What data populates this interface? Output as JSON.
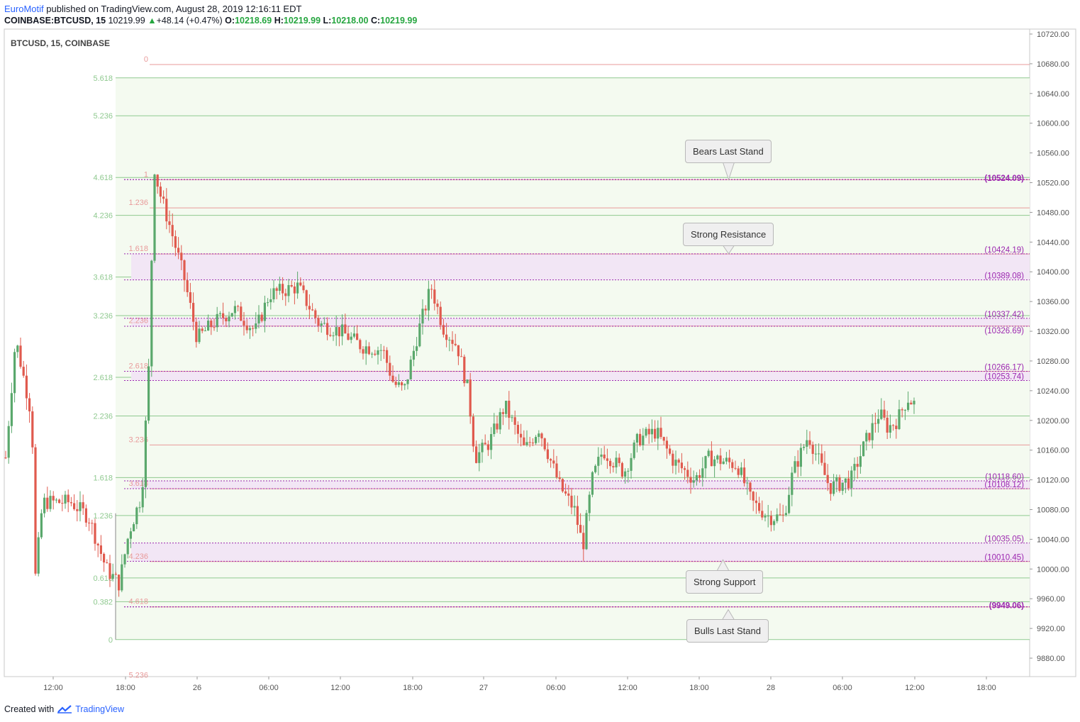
{
  "header": {
    "author": "EuroMotif",
    "published_text": "published on TradingView.com, August 28, 2019 12:16:11 EDT",
    "symbol_interval": "COINBASE:BTCUSD, 15",
    "last_price": "10219.99",
    "change": "+48.14 (+0.47%)",
    "o_label": "O:",
    "o_value": "10218.69",
    "h_label": "H:",
    "h_value": "10219.99",
    "l_label": "L:",
    "l_value": "10218.00",
    "c_label": "C:",
    "c_value": "10219.99",
    "up_color": "#26a640"
  },
  "footer": {
    "created_with": "Created with",
    "brand": "TradingView"
  },
  "chart_data": {
    "type": "candlestick",
    "pane_title": "BTCUSD, 15, COINBASE",
    "ylim": [
      9840,
      10730
    ],
    "x_tick_labels": [
      "12:00",
      "18:00",
      "26",
      "06:00",
      "12:00",
      "18:00",
      "27",
      "06:00",
      "12:00",
      "18:00",
      "28",
      "06:00",
      "12:00",
      "18:00"
    ],
    "y_tick_labels": [
      "10720.00",
      "10680.00",
      "10640.00",
      "10600.00",
      "10560.00",
      "10520.00",
      "10480.00",
      "10440.00",
      "10400.00",
      "10360.00",
      "10320.00",
      "10280.00",
      "10240.00",
      "10200.00",
      "10160.00",
      "10120.00",
      "10080.00",
      "10040.00",
      "10000.00",
      "9960.00",
      "9920.00",
      "9880.00"
    ],
    "y_ticks": [
      10720,
      10680,
      10640,
      10600,
      10560,
      10520,
      10480,
      10440,
      10400,
      10360,
      10320,
      10280,
      10240,
      10200,
      10160,
      10120,
      10080,
      10040,
      10000,
      9960,
      9920,
      9880
    ],
    "fib_extension_green": {
      "color": "#8fc98f",
      "levels": [
        {
          "label": "5.618",
          "price": 10661
        },
        {
          "label": "5.236",
          "price": 10610
        },
        {
          "label": "4.618",
          "price": 10527
        },
        {
          "label": "4.236",
          "price": 10476
        },
        {
          "label": "3.618",
          "price": 10393
        },
        {
          "label": "3.236",
          "price": 10341
        },
        {
          "label": "2.618",
          "price": 10258
        },
        {
          "label": "2.236",
          "price": 10206
        },
        {
          "label": "1.618",
          "price": 10123
        },
        {
          "label": "1.236",
          "price": 10072
        },
        {
          "label": "0.618",
          "price": 9988
        },
        {
          "label": "0.382",
          "price": 9956
        },
        {
          "label": "0",
          "price": 9905
        }
      ]
    },
    "fib_extension_red": {
      "color": "#e89a9a",
      "levels": [
        {
          "label": "0",
          "price": 10679
        },
        {
          "label": "1",
          "price": 10524
        },
        {
          "label": "1.236",
          "price": 10486
        },
        {
          "label": "1.618",
          "price": 10424
        },
        {
          "label": "2.236",
          "price": 10327
        },
        {
          "label": "2.618",
          "price": 10266
        },
        {
          "label": "3.236",
          "price": 10167
        },
        {
          "label": "3.618",
          "price": 10108
        },
        {
          "label": "4.236",
          "price": 10010
        },
        {
          "label": "4.618",
          "price": 9949
        },
        {
          "label": "5.236",
          "price": 9850
        }
      ]
    },
    "price_lines": [
      {
        "label": "(10524.09)",
        "price": 10524.09,
        "bold": true
      },
      {
        "label": "(10424.19)",
        "price": 10424.19
      },
      {
        "label": "(10389.08)",
        "price": 10389.08
      },
      {
        "label": "(10337.42)",
        "price": 10337.42
      },
      {
        "label": "(10326.69)",
        "price": 10326.69
      },
      {
        "label": "(10266.17)",
        "price": 10266.17
      },
      {
        "label": "(10253.74)",
        "price": 10253.74
      },
      {
        "label": "(10118.60)",
        "price": 10118.6
      },
      {
        "label": "(10108.12)",
        "price": 10108.12
      },
      {
        "label": "(10035.05)",
        "price": 10035.05
      },
      {
        "label": "(10010.45)",
        "price": 10010.45
      },
      {
        "label": "(9949.06)",
        "price": 9949.06,
        "bold": true
      }
    ],
    "zones": [
      {
        "top": 10424.19,
        "bottom": 10389.08
      },
      {
        "top": 10337.42,
        "bottom": 10326.69
      },
      {
        "top": 10266.17,
        "bottom": 10253.74
      },
      {
        "top": 10118.6,
        "bottom": 10108.12
      },
      {
        "top": 10035.05,
        "bottom": 10010.45
      }
    ],
    "annotations": [
      {
        "text": "Bears Last Stand",
        "target_price": 10524.09,
        "pointer": "down"
      },
      {
        "text": "Strong Resistance",
        "target_price": 10424.19,
        "pointer": "down"
      },
      {
        "text": "Strong Support",
        "target_price": 10010.45,
        "pointer": "up"
      },
      {
        "text": "Bulls Last Stand",
        "target_price": 9949.06,
        "pointer": "up"
      }
    ],
    "line_color": "#9c27b0",
    "label_color": "#9c27b0",
    "zone_color": "#f2e6f5",
    "bull_color": "#5aa86c",
    "bear_color": "#e05a4e",
    "candles_description_omitted": true
  }
}
